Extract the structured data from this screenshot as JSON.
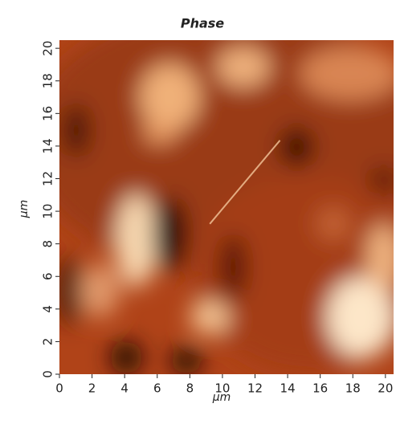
{
  "chart_data": {
    "type": "heatmap",
    "title": "Phase",
    "xlabel": "µm",
    "ylabel": "µm",
    "xlim": [
      0,
      20.5
    ],
    "ylim": [
      0,
      20.5
    ],
    "xticks": [
      0,
      2,
      4,
      6,
      8,
      10,
      12,
      14,
      16,
      18,
      20
    ],
    "yticks": [
      0,
      2,
      4,
      6,
      8,
      10,
      12,
      14,
      16,
      18,
      20
    ]
  }
}
